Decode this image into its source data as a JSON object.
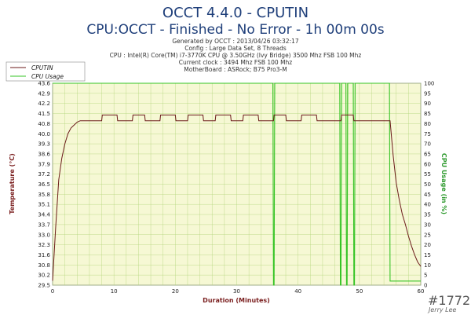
{
  "chart_data": {
    "type": "line",
    "title": "OCCT 4.4.0 - CPUTIN",
    "subtitle": "CPU:OCCT - Finished - No Error - 1h 00m 00s",
    "info_lines": [
      "Generated by OCCT : 2013/04/26 03:32:17",
      "Config : Large Data Set, 8 Threads",
      "CPU : Intel(R) Core(TM) i7-3770K CPU @ 3.50GHz (Ivy Bridge) 3500 Mhz FSB 100 Mhz",
      "Current clock : 3494 Mhz FSB 100 Mhz",
      "MotherBoard : ASRock; B75 Pro3-M"
    ],
    "xlabel": "Duration (Minutes)",
    "ylabel_left": "Temperature (°C)",
    "ylabel_right": "CPU Usage (in %)",
    "xlim": [
      0,
      60
    ],
    "ylim_left": [
      29.5,
      43.5
    ],
    "ylim_right": [
      0,
      100
    ],
    "x_ticks": [
      "0",
      "10",
      "20",
      "30",
      "40",
      "50",
      "60"
    ],
    "y_left_ticks": [
      "29.5",
      "30.2",
      "30.8",
      "31.6",
      "32.3",
      "33.0",
      "33.7",
      "34.4",
      "35.1",
      "35.8",
      "36.5",
      "37.2",
      "37.9",
      "38.6",
      "39.3",
      "40.0",
      "40.8",
      "41.5",
      "42.2",
      "42.9",
      "43.6"
    ],
    "y_right_ticks": [
      "0",
      "5",
      "10",
      "15",
      "20",
      "25",
      "30",
      "35",
      "40",
      "45",
      "50",
      "55",
      "60",
      "65",
      "70",
      "75",
      "80",
      "85",
      "90",
      "95",
      "100"
    ],
    "grid": true,
    "legend_position": "top-left",
    "colors": {
      "background": "#f6f8d4",
      "grid": "#b3d47a",
      "temperature": "#6b1a1a",
      "usage": "#35c425",
      "axis_left_label": "#7a1e1e",
      "axis_right_label": "#2e9a2e"
    },
    "series": [
      {
        "name": "CPUTIN",
        "axis": "left",
        "x": [
          0,
          0.5,
          1,
          1.5,
          2,
          2.5,
          3,
          3.5,
          4,
          4.5,
          5,
          8,
          8.1,
          10.5,
          10.6,
          13,
          13.1,
          15,
          15.1,
          17.5,
          17.6,
          20,
          20.1,
          22,
          22.1,
          24.5,
          24.6,
          26.5,
          26.6,
          29,
          29.1,
          31,
          31.1,
          33.5,
          33.6,
          36,
          36.1,
          38,
          38.1,
          40.5,
          40.6,
          43,
          43.1,
          47,
          47.1,
          49,
          49.1,
          55,
          55.5,
          56,
          56.5,
          57,
          57.5,
          58,
          58.5,
          59,
          59.5,
          60
        ],
        "y": [
          29.8,
          33.5,
          36.8,
          38.3,
          39.3,
          40.0,
          40.4,
          40.6,
          40.8,
          40.9,
          40.9,
          40.9,
          41.3,
          41.3,
          40.9,
          40.9,
          41.3,
          41.3,
          40.9,
          40.9,
          41.3,
          41.3,
          40.9,
          40.9,
          41.3,
          41.3,
          40.9,
          40.9,
          41.3,
          41.3,
          40.9,
          40.9,
          41.3,
          41.3,
          40.9,
          40.9,
          41.3,
          41.3,
          40.9,
          40.9,
          41.3,
          41.3,
          40.9,
          40.9,
          41.3,
          41.3,
          40.9,
          40.9,
          38.5,
          36.6,
          35.4,
          34.4,
          33.7,
          32.9,
          32.2,
          31.6,
          31.1,
          30.8
        ]
      },
      {
        "name": "CPU Usage",
        "axis": "right",
        "x": [
          0,
          0.6,
          0.7,
          35.9,
          36.0,
          36.1,
          36.2,
          46.8,
          46.9,
          47.0,
          47.1,
          47.8,
          47.9,
          48.0,
          48.1,
          49.0,
          49.1,
          49.2,
          49.3,
          54.9,
          55.0,
          60
        ],
        "y": [
          100,
          100,
          100,
          100,
          0,
          0,
          100,
          100,
          0,
          0,
          100,
          100,
          0,
          0,
          100,
          100,
          0,
          0,
          100,
          100,
          2,
          2
        ]
      }
    ]
  },
  "watermark": {
    "number": "#1772",
    "author": "Jerry Lee"
  }
}
